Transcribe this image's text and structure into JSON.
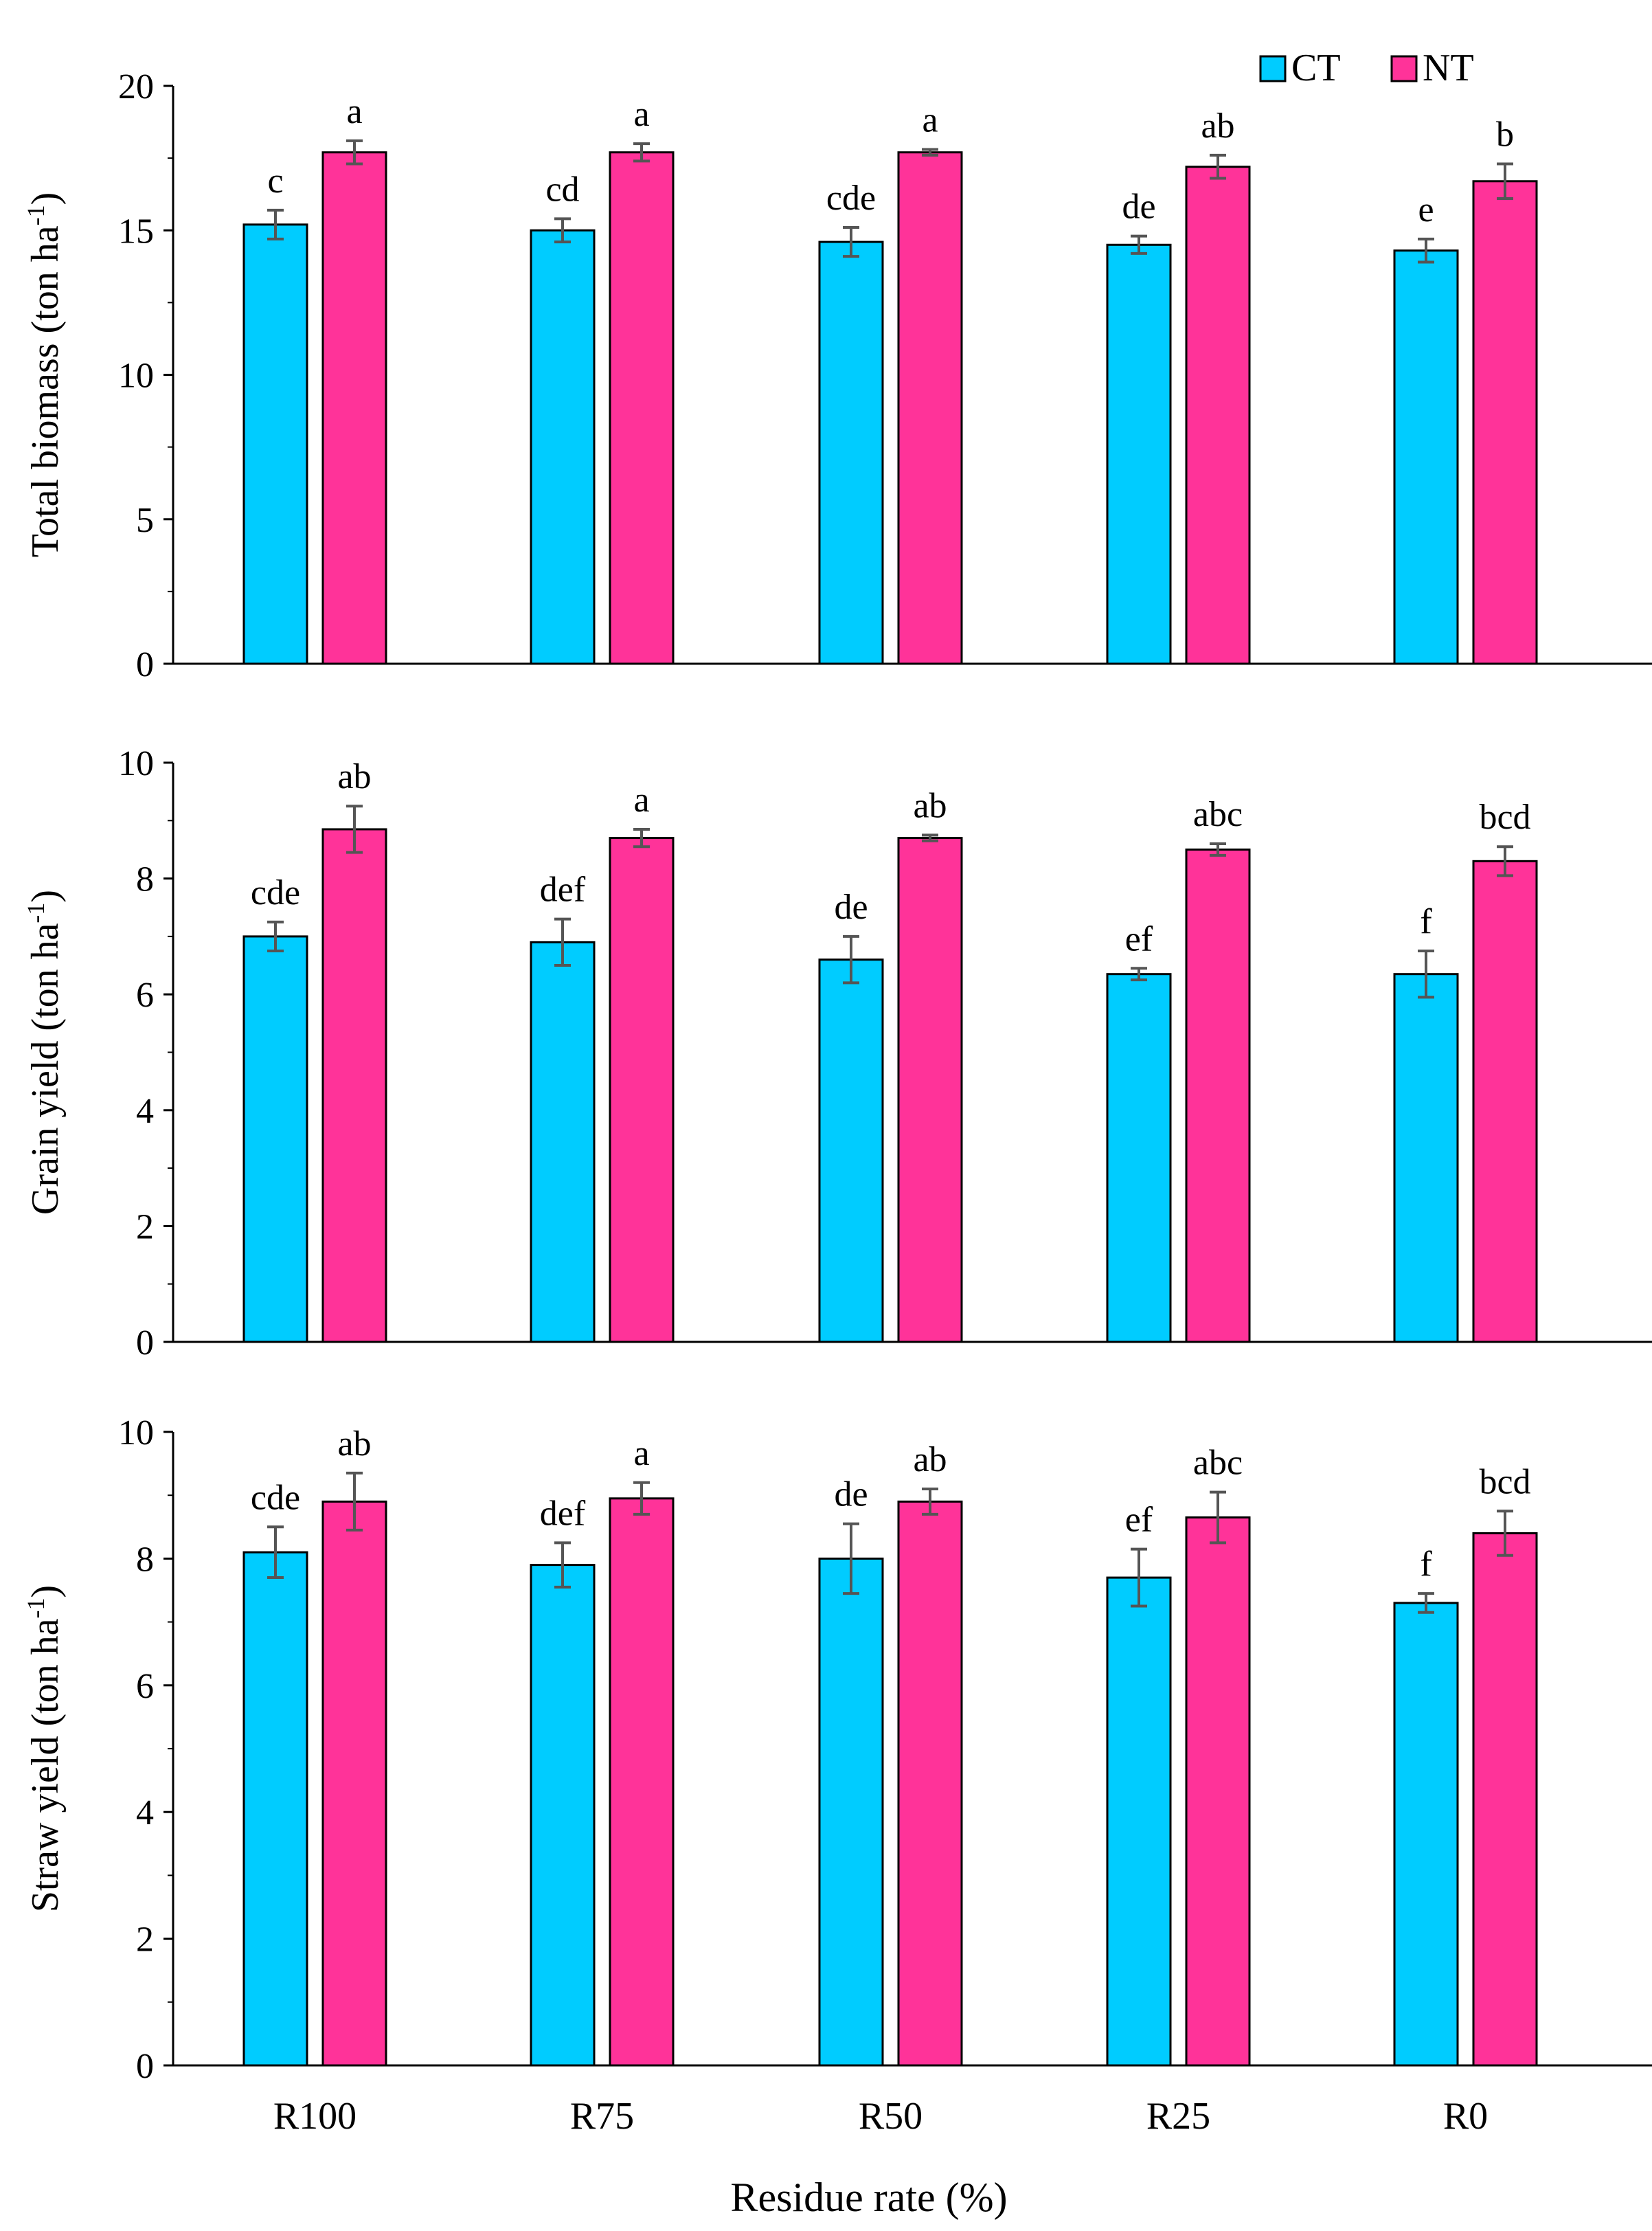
{
  "legend": [
    {
      "key": "CT",
      "label": "CT",
      "color": "#00CCFF"
    },
    {
      "key": "NT",
      "label": "NT",
      "color": "#FF3399"
    }
  ],
  "chart_data": [
    {
      "type": "bar",
      "ylabel_main": "Total biomass (ton ha",
      "ylabel_sup": "-1",
      "ylabel_tail": ")",
      "xlabel": "",
      "ylim": [
        0,
        20
      ],
      "yticks": [
        0,
        5,
        10,
        15,
        20
      ],
      "categories": [
        "R100",
        "R75",
        "R50",
        "R25",
        "R0"
      ],
      "series": [
        {
          "name": "CT",
          "values": [
            15.2,
            15.0,
            14.6,
            14.5,
            14.3
          ],
          "errors": [
            0.5,
            0.4,
            0.5,
            0.3,
            0.4
          ],
          "labels": [
            "c",
            "cd",
            "cde",
            "de",
            "e"
          ]
        },
        {
          "name": "NT",
          "values": [
            17.7,
            17.7,
            17.7,
            17.2,
            16.7
          ],
          "errors": [
            0.4,
            0.3,
            0.1,
            0.4,
            0.6
          ],
          "labels": [
            "a",
            "a",
            "a",
            "ab",
            "b"
          ]
        }
      ]
    },
    {
      "type": "bar",
      "ylabel_main": "Grain yield (ton ha",
      "ylabel_sup": "-1",
      "ylabel_tail": ")",
      "xlabel": "",
      "ylim": [
        0,
        10
      ],
      "yticks": [
        0,
        2,
        4,
        6,
        8,
        10
      ],
      "categories": [
        "R100",
        "R75",
        "R50",
        "R25",
        "R0"
      ],
      "series": [
        {
          "name": "CT",
          "values": [
            7.0,
            6.9,
            6.6,
            6.35,
            6.35
          ],
          "errors": [
            0.25,
            0.4,
            0.4,
            0.1,
            0.4
          ],
          "labels": [
            "cde",
            "def",
            "de",
            "ef",
            "f"
          ]
        },
        {
          "name": "NT",
          "values": [
            8.85,
            8.7,
            8.7,
            8.5,
            8.3
          ],
          "errors": [
            0.4,
            0.15,
            0.05,
            0.1,
            0.25
          ],
          "labels": [
            "ab",
            "a",
            "ab",
            "abc",
            "bcd"
          ]
        }
      ]
    },
    {
      "type": "bar",
      "ylabel_main": "Straw yield (ton ha",
      "ylabel_sup": "-1",
      "ylabel_tail": ")",
      "xlabel": "Residue rate (%)",
      "ylim": [
        0,
        10
      ],
      "yticks": [
        0,
        2,
        4,
        6,
        8,
        10
      ],
      "categories": [
        "R100",
        "R75",
        "R50",
        "R25",
        "R0"
      ],
      "series": [
        {
          "name": "CT",
          "values": [
            8.1,
            7.9,
            8.0,
            7.7,
            7.3
          ],
          "errors": [
            0.4,
            0.35,
            0.55,
            0.45,
            0.15
          ],
          "labels": [
            "cde",
            "def",
            "de",
            "ef",
            "f"
          ]
        },
        {
          "name": "NT",
          "values": [
            8.9,
            8.95,
            8.9,
            8.65,
            8.4
          ],
          "errors": [
            0.45,
            0.25,
            0.2,
            0.4,
            0.35
          ],
          "labels": [
            "ab",
            "a",
            "ab",
            "abc",
            "bcd"
          ]
        }
      ]
    }
  ]
}
